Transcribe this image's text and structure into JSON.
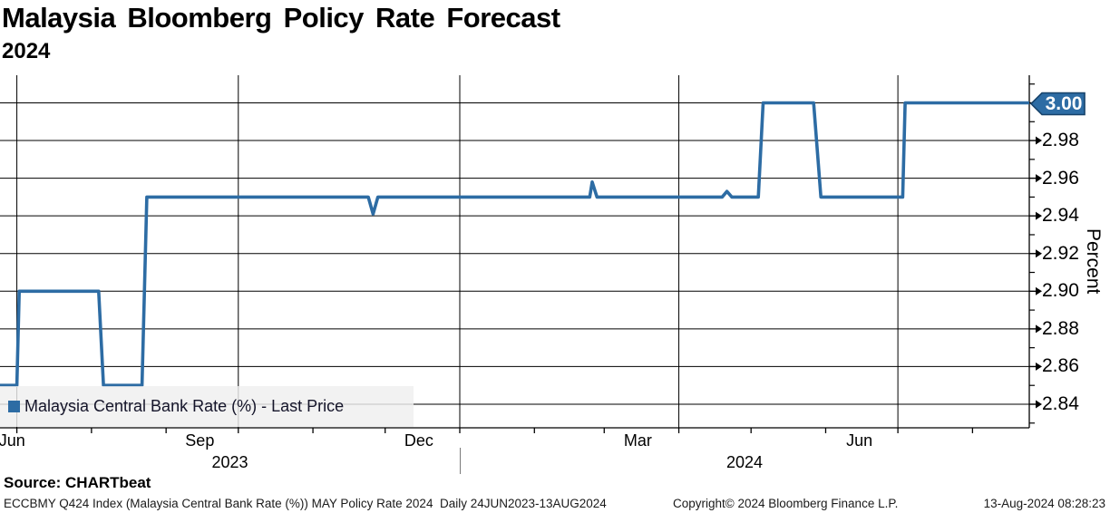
{
  "title": "Malaysia Bloomberg Policy Rate Forecast",
  "subtitle": "2024",
  "last_price_badge": "3.00",
  "legend": {
    "label": "Malaysia Central Bank Rate (%) - Last Price"
  },
  "source_label": "Source: CHARTbeat",
  "footer": {
    "left": "ECCBMY Q424 Index (Malaysia Central Bank Rate (%)) MAY Policy Rate 2024  Daily 24JUN2023-13AUG2024",
    "center": "Copyright© 2024 Bloomberg Finance L.P.",
    "right": "13-Aug-2024 08:28:23"
  },
  "colors": {
    "line": "#2d6ca4",
    "badge_fill": "#2d6ca4",
    "badge_border": "#17436b",
    "grid": "#000000",
    "axis": "#000000",
    "legend_bg": "#efefef",
    "badge_text": "#ffffff"
  },
  "chart_data": {
    "type": "line",
    "title": "Malaysia Bloomberg Policy Rate Forecast 2024",
    "ylabel": "Percent",
    "ylim": [
      2.83,
      3.01
    ],
    "y_ticks": [
      "2.84",
      "2.86",
      "2.88",
      "2.90",
      "2.92",
      "2.94",
      "2.96",
      "2.98",
      "3.00"
    ],
    "grid": "on",
    "legend_position": "bottom-left",
    "x_range": [
      "2023-06-24",
      "2024-08-13"
    ],
    "x_gridline_dates": [
      "2023-07-01",
      "2023-10-01",
      "2024-01-01",
      "2024-04-01",
      "2024-07-01"
    ],
    "x_month_labels": [
      {
        "label": "Jun",
        "date": "2023-06-29"
      },
      {
        "label": "Sep",
        "date": "2023-09-15"
      },
      {
        "label": "Dec",
        "date": "2023-12-15"
      },
      {
        "label": "Mar",
        "date": "2024-03-15"
      },
      {
        "label": "Jun",
        "date": "2024-06-15"
      }
    ],
    "x_year_labels": [
      "2023",
      "2024"
    ],
    "year_boundary_date": "2024-01-01",
    "series": [
      {
        "name": "Malaysia Central Bank Rate (%) - Last Price",
        "last_price": 3.0,
        "points": [
          [
            "2023-06-24",
            2.85
          ],
          [
            "2023-07-01",
            2.85
          ],
          [
            "2023-07-02",
            2.9
          ],
          [
            "2023-08-04",
            2.9
          ],
          [
            "2023-08-06",
            2.85
          ],
          [
            "2023-08-22",
            2.85
          ],
          [
            "2023-08-24",
            2.95
          ],
          [
            "2023-11-24",
            2.95
          ],
          [
            "2023-11-26",
            2.941
          ],
          [
            "2023-11-28",
            2.95
          ],
          [
            "2024-02-24",
            2.95
          ],
          [
            "2024-02-25",
            2.958
          ],
          [
            "2024-02-27",
            2.95
          ],
          [
            "2024-04-19",
            2.95
          ],
          [
            "2024-04-21",
            2.953
          ],
          [
            "2024-04-23",
            2.95
          ],
          [
            "2024-05-04",
            2.95
          ],
          [
            "2024-05-06",
            3.0
          ],
          [
            "2024-05-27",
            3.0
          ],
          [
            "2024-05-30",
            2.95
          ],
          [
            "2024-07-03",
            2.95
          ],
          [
            "2024-07-04",
            3.0
          ],
          [
            "2024-08-13",
            3.0
          ]
        ],
        "extend_to_axis": true
      }
    ]
  }
}
